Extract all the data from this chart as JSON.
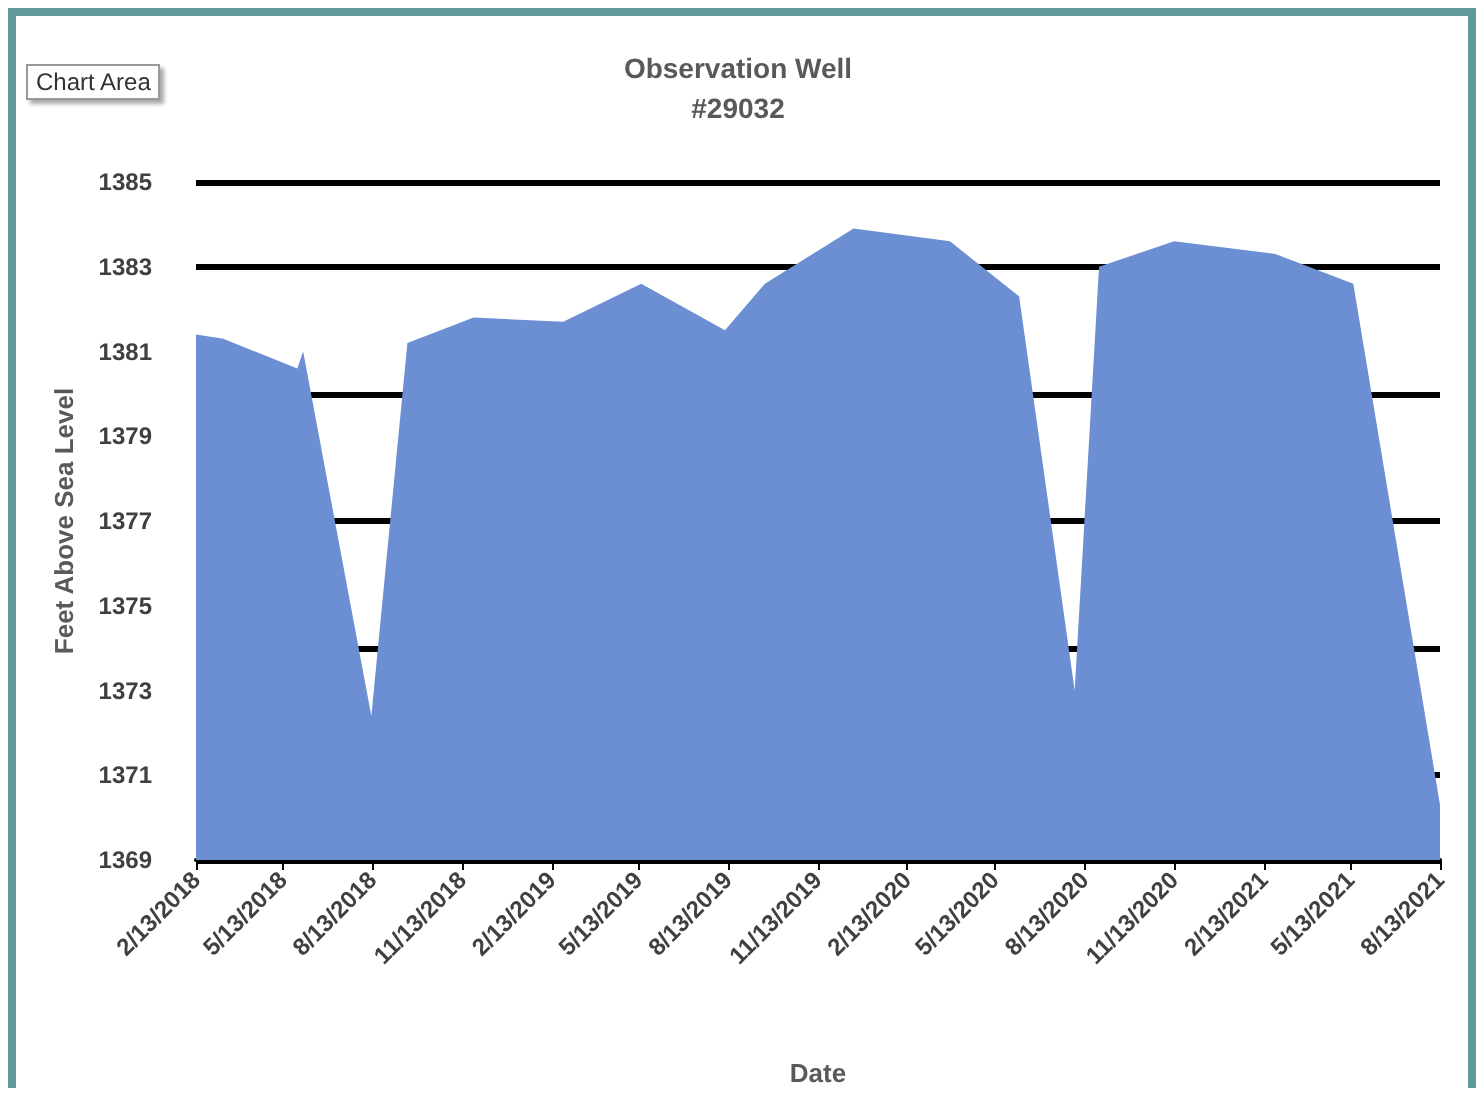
{
  "chart_data": {
    "type": "area",
    "title": "Observation Well",
    "subtitle": "#29032",
    "xlabel": "Date",
    "ylabel": "Feet Above Sea Level",
    "annotations": [
      "Chart Area"
    ],
    "x": [
      "2018-02-13",
      "2018-03-13",
      "2018-05-28",
      "2018-06-03",
      "2018-08-12",
      "2018-09-18",
      "2018-11-25",
      "2019-02-25",
      "2019-05-16",
      "2019-08-10",
      "2019-09-20",
      "2019-12-20",
      "2020-03-28",
      "2020-06-07",
      "2020-08-03",
      "2020-08-28",
      "2020-11-13",
      "2021-02-25",
      "2021-05-16",
      "2021-08-13"
    ],
    "series": [
      {
        "color": "#6b8fd2",
        "values": [
          1381.4,
          1381.3,
          1380.6,
          1381.0,
          1372.4,
          1381.2,
          1381.8,
          1381.7,
          1382.6,
          1381.5,
          1382.6,
          1383.9,
          1383.6,
          1382.3,
          1373.0,
          1383.0,
          1383.6,
          1383.3,
          1382.6,
          1370.3
        ]
      }
    ],
    "xlim": [
      "2018-02-13",
      "2021-08-13"
    ],
    "xticks": [
      {
        "value": "2018-02-13",
        "label": "2/13/2018"
      },
      {
        "value": "2018-05-13",
        "label": "5/13/2018"
      },
      {
        "value": "2018-08-13",
        "label": "8/13/2018"
      },
      {
        "value": "2018-11-13",
        "label": "11/13/2018"
      },
      {
        "value": "2019-02-13",
        "label": "2/13/2019"
      },
      {
        "value": "2019-05-13",
        "label": "5/13/2019"
      },
      {
        "value": "2019-08-13",
        "label": "8/13/2019"
      },
      {
        "value": "2019-11-13",
        "label": "11/13/2019"
      },
      {
        "value": "2020-02-13",
        "label": "2/13/2020"
      },
      {
        "value": "2020-05-13",
        "label": "5/13/2020"
      },
      {
        "value": "2020-08-13",
        "label": "8/13/2020"
      },
      {
        "value": "2020-11-13",
        "label": "11/13/2020"
      },
      {
        "value": "2021-02-13",
        "label": "2/13/2021"
      },
      {
        "value": "2021-05-13",
        "label": "5/13/2021"
      },
      {
        "value": "2021-08-13",
        "label": "8/13/2021"
      }
    ],
    "ylim": [
      1369,
      1385
    ],
    "yticks": [
      1369,
      1371,
      1373,
      1375,
      1377,
      1379,
      1381,
      1383,
      1385
    ],
    "grid": "y",
    "marker": "none"
  }
}
